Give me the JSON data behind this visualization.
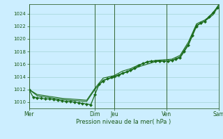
{
  "xlabel": "Pression niveau de la mer( hPa )",
  "bg_color": "#cceeff",
  "grid_color": "#99cccc",
  "line_color": "#1a6b1a",
  "ylim": [
    1009.0,
    1025.5
  ],
  "day_labels": [
    "Mer",
    "Dim",
    "Jeu",
    "Ven",
    "Sam"
  ],
  "day_positions": [
    0,
    48,
    62,
    100,
    138
  ],
  "series1_x": [
    0,
    3,
    6,
    9,
    12,
    15,
    18,
    21,
    24,
    27,
    30,
    33,
    36,
    39,
    42,
    45,
    48,
    51,
    54,
    57,
    60,
    62,
    65,
    68,
    71,
    74,
    77,
    80,
    83,
    86,
    89,
    92,
    95,
    98,
    101,
    104,
    107,
    110,
    113,
    116,
    119,
    122,
    125,
    128,
    131,
    134,
    137
  ],
  "series1_y": [
    1012.0,
    1010.8,
    1010.7,
    1010.6,
    1010.5,
    1010.5,
    1010.4,
    1010.3,
    1010.2,
    1010.1,
    1010.1,
    1010.0,
    1009.9,
    1009.8,
    1009.7,
    1009.6,
    1011.2,
    1012.8,
    1013.3,
    1013.7,
    1013.9,
    1014.1,
    1014.3,
    1014.6,
    1014.8,
    1015.1,
    1015.4,
    1015.8,
    1016.1,
    1016.4,
    1016.5,
    1016.5,
    1016.5,
    1016.5,
    1016.5,
    1016.6,
    1016.8,
    1017.0,
    1018.0,
    1019.0,
    1020.5,
    1022.0,
    1022.5,
    1022.8,
    1023.5,
    1024.2,
    1025.0
  ],
  "series2_x": [
    0,
    6,
    12,
    18,
    24,
    30,
    36,
    42,
    48,
    54,
    62,
    68,
    74,
    80,
    86,
    92,
    98,
    104,
    110,
    116,
    122,
    128,
    134,
    138
  ],
  "series2_y": [
    1012.0,
    1011.0,
    1010.8,
    1010.6,
    1010.4,
    1010.3,
    1010.2,
    1010.1,
    1012.0,
    1013.5,
    1013.9,
    1014.5,
    1015.0,
    1015.6,
    1016.0,
    1016.4,
    1016.5,
    1016.6,
    1017.2,
    1019.2,
    1022.2,
    1022.8,
    1023.8,
    1025.2
  ],
  "series3_x": [
    0,
    6,
    12,
    18,
    24,
    30,
    36,
    42,
    48,
    54,
    62,
    68,
    74,
    80,
    86,
    92,
    98,
    104,
    110,
    116,
    122,
    128,
    134,
    138
  ],
  "series3_y": [
    1012.0,
    1011.2,
    1011.0,
    1010.8,
    1010.6,
    1010.5,
    1010.4,
    1010.3,
    1012.2,
    1013.8,
    1014.2,
    1014.9,
    1015.3,
    1015.9,
    1016.3,
    1016.6,
    1016.7,
    1016.8,
    1017.4,
    1019.5,
    1022.4,
    1023.0,
    1024.0,
    1025.4
  ]
}
